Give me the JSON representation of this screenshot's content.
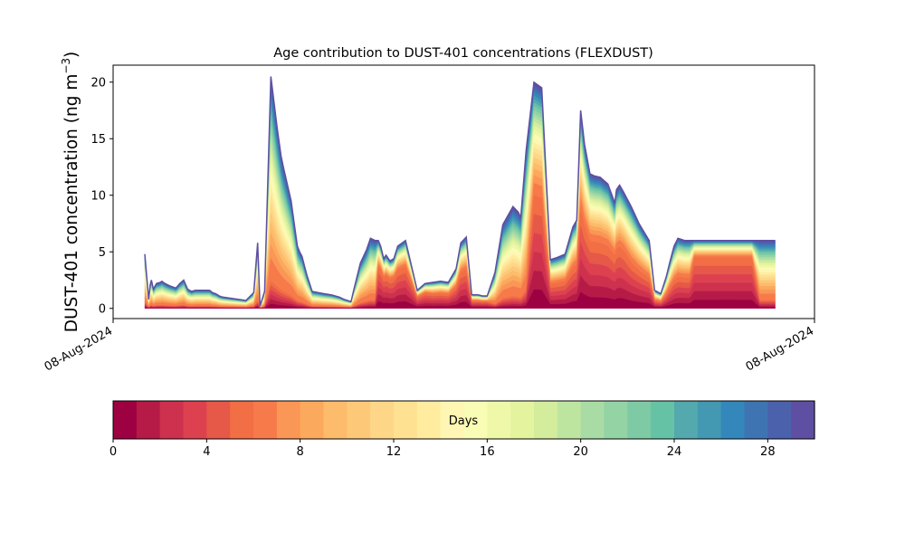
{
  "chart_data": {
    "type": "area",
    "title": "Age contribution to DUST-401 concentrations (FLEXDUST)",
    "ylabel": "DUST-401 concentration (ng m⁻³)",
    "ylabel_main": "DUST-401 concentration (ng m",
    "ylabel_sup": "−3",
    "ylabel_close": ")",
    "xlabel": "",
    "x_tick_labels": [
      "08-Aug-2024",
      "08-Aug-2024"
    ],
    "ylim": [
      -0.9,
      21.5
    ],
    "y_ticks": [
      0,
      5,
      10,
      15,
      20
    ],
    "grid": false,
    "colorbar": {
      "label": "Days",
      "min": 0,
      "max": 30,
      "ticks": [
        0,
        4,
        8,
        12,
        16,
        20,
        24,
        28
      ],
      "colors": [
        "#9e0142",
        "#b61b48",
        "#cd314d",
        "#dd4150",
        "#e65848",
        "#f26e44",
        "#f77a4a",
        "#fa9656",
        "#fba95c",
        "#fdbb6c",
        "#fdc878",
        "#fed687",
        "#fee191",
        "#ffec9f",
        "#fff6b3",
        "#f8fcb4",
        "#eef8a8",
        "#e4f49e",
        "#d3ed9c",
        "#bee5a0",
        "#a9dca4",
        "#93d3a4",
        "#7dcaa5",
        "#66c2a5",
        "#53a9ae",
        "#4398b2",
        "#3487bb",
        "#3f74b2",
        "#4b61ab",
        "#5e4fa2"
      ]
    },
    "series_totals": {
      "x": [
        0,
        0.35,
        0.5,
        0.7,
        0.85,
        1.1,
        1.5,
        2.0,
        2.2,
        2.6,
        3.2,
        4.0,
        4.5,
        5.0,
        5.5,
        6.0,
        6.5,
        7.0,
        7.6,
        8.3,
        8.5,
        8.7,
        9.1,
        9.35,
        9.55,
        10.0,
        11.0,
        12.0,
        13.0,
        14.0,
        14.5,
        14.8,
        15.4,
        16.2,
        17.0,
        17.5,
        17.8,
        18.3,
        18.8,
        19.2,
        19.6,
        19.9,
        20.2,
        20.8,
        21.5,
        22.3,
        23.0,
        24.0,
        25.0,
        25.6,
        26.5,
        26.8,
        27.7,
        28.5,
        29.0,
        29.3,
        29.6,
        30.0,
        30.3,
        30.7,
        31.0,
        31.5,
        32.0,
        32.5,
        33.5,
        35.0,
        36.0,
        37.0,
        38.0,
        39.0,
        40.0,
        40.6,
        41.3,
        42.0,
        42.8,
        43.4,
        44.0,
        45.0,
        46.0,
        47.3,
        48.0,
        48.3,
        49.0,
        50.0,
        51.0,
        52.1,
        53.0,
        54.0,
        55.0,
        55.5,
        56.0,
        56.5,
        57.2,
        57.8,
        58.5,
        59.5,
        60.4,
        60.6,
        61.0,
        61.5,
        62.5,
        63.5,
        64.8,
        65.5,
        66.3,
        67.0,
        67.5,
        68.0,
        68.5,
        69.4,
        70.0,
        70.6,
        71.0,
        71.5,
        72.0,
        73.0,
        74.0,
        75.0,
        76.0,
        77.0,
        78.0,
        79.0,
        79.5,
        80.4,
        80.8,
        81.0
      ],
      "y": [
        4.8,
        2.0,
        0.8,
        2.1,
        2.5,
        1.7,
        2.2,
        2.3,
        2.4,
        2.2,
        2.0,
        1.8,
        2.2,
        2.5,
        1.7,
        1.5,
        1.6,
        1.6,
        1.6,
        1.6,
        1.5,
        1.4,
        1.3,
        1.2,
        1.1,
        1.0,
        0.9,
        0.8,
        0.7,
        1.4,
        5.8,
        0.2,
        1.5,
        20.5,
        16.0,
        13.5,
        12.5,
        11.0,
        9.5,
        7.5,
        5.5,
        5.0,
        4.6,
        3.0,
        1.5,
        1.4,
        1.3,
        1.2,
        1.0,
        0.8,
        0.6,
        1.5,
        4.0,
        5.2,
        6.2,
        6.1,
        6.0,
        6.0,
        5.5,
        4.4,
        4.7,
        4.2,
        4.4,
        5.5,
        6.0,
        1.6,
        2.2,
        2.3,
        2.4,
        2.3,
        3.5,
        5.8,
        6.3,
        1.2,
        1.2,
        1.1,
        1.1,
        3.2,
        7.4,
        9.0,
        8.5,
        8.0,
        14.0,
        20.0,
        19.5,
        4.3,
        4.5,
        4.8,
        7.2,
        7.8,
        17.5,
        14.5,
        11.9,
        11.7,
        11.6,
        11.0,
        9.3,
        10.5,
        10.9,
        10.3,
        9.0,
        7.5,
        6.0,
        1.6,
        1.3,
        2.8,
        4.2,
        5.5,
        6.2,
        6.0,
        6.0,
        6.0,
        6.0,
        6.0,
        6.0,
        6.0,
        6.0,
        6.0,
        6.0,
        6.0,
        6.0,
        6.0,
        6.0,
        6.0,
        6.0,
        6.0
      ]
    }
  }
}
